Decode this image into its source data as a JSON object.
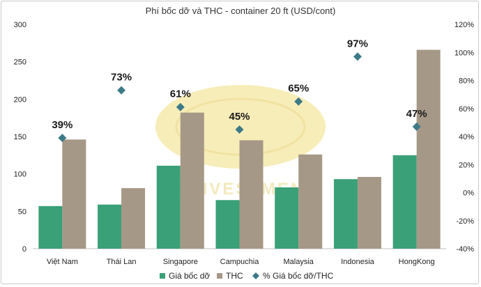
{
  "chart_data": {
    "type": "bar",
    "title": "Phí bốc dỡ và THC - container 20 ft (USD/cont)",
    "categories": [
      "Việt Nam",
      "Thái Lan",
      "Singapore",
      "Campuchia",
      "Malaysia",
      "Indonesia",
      "HongKong"
    ],
    "series": [
      {
        "name": "Giá bốc dỡ",
        "type": "bar",
        "axis": "left",
        "color": "#3aa078",
        "values": [
          57,
          59,
          111,
          65,
          82,
          93,
          125
        ]
      },
      {
        "name": "THC",
        "type": "bar",
        "axis": "left",
        "color": "#a69886",
        "values": [
          146,
          81,
          182,
          145,
          126,
          96,
          266
        ]
      },
      {
        "name": "% Giá bốc dỡ/THC",
        "type": "scatter",
        "axis": "right",
        "color": "#3d7a87",
        "marker": "diamond",
        "values": [
          39,
          73,
          61,
          45,
          65,
          97,
          47
        ]
      }
    ],
    "point_labels": [
      "39%",
      "73%",
      "61%",
      "45%",
      "65%",
      "97%",
      "47%"
    ],
    "y_left": {
      "min": 0,
      "max": 300,
      "ticks": [
        "0",
        "50",
        "100",
        "150",
        "200",
        "250",
        "300"
      ]
    },
    "y_right": {
      "min": -40,
      "max": 120,
      "ticks": [
        "-40%",
        "-20%",
        "0%",
        "20%",
        "40%",
        "60%",
        "80%",
        "100%",
        "120%"
      ]
    },
    "grid": false,
    "legend_position": "bottom"
  },
  "watermark": {
    "text": "TTINVESTMENT",
    "color": "#f2e6a4"
  }
}
